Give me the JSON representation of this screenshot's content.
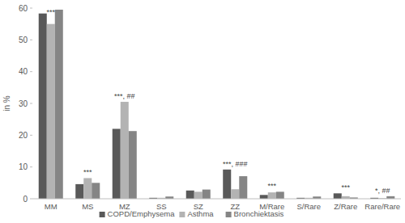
{
  "chart_data": {
    "type": "bar",
    "y_label": "in %",
    "categories": [
      "MM",
      "MS",
      "MZ",
      "SS",
      "SZ",
      "ZZ",
      "M/Rare",
      "S/Rare",
      "Z/Rare",
      "Rare/Rare"
    ],
    "series": [
      {
        "name": "COPD/Emphysema",
        "color": "#595959",
        "values": [
          58.3,
          4.6,
          22.0,
          0.3,
          2.6,
          9.2,
          1.2,
          0.3,
          1.7,
          0.3
        ]
      },
      {
        "name": "Asthma",
        "color": "#b3b3b3",
        "values": [
          55.0,
          6.5,
          30.5,
          0.3,
          2.2,
          3.0,
          2.0,
          0.3,
          0.8,
          0.2
        ]
      },
      {
        "name": "Bronchiektasis",
        "color": "#858585",
        "values": [
          59.5,
          5.0,
          21.3,
          0.7,
          2.9,
          7.1,
          2.2,
          0.7,
          0.4,
          0.8
        ]
      }
    ],
    "annotations": [
      {
        "category": "MM",
        "text": "***"
      },
      {
        "category": "MS",
        "text": "***"
      },
      {
        "category": "MZ",
        "text": "***, ##"
      },
      {
        "category": "ZZ",
        "text": "***, ###"
      },
      {
        "category": "M/Rare",
        "text": "***"
      },
      {
        "category": "Z/Rare",
        "text": "***"
      },
      {
        "category": "Rare/Rare",
        "text": "*, ##"
      }
    ],
    "ylim": [
      0,
      60
    ],
    "yticks": [
      0,
      10,
      20,
      30,
      40,
      50,
      60
    ],
    "grid": false,
    "legend": "bottom"
  }
}
